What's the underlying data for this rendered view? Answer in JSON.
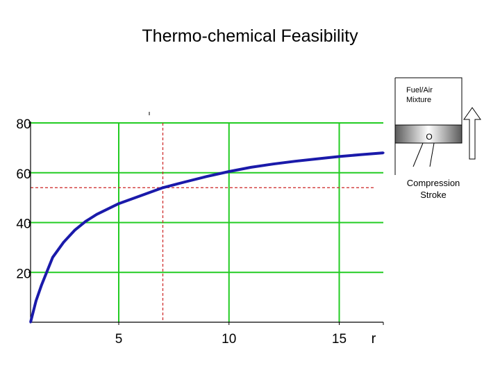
{
  "title": "Thermo-chemical Feasibility",
  "chart_data": {
    "type": "line",
    "title": "Thermo-chemical Feasibility",
    "xlabel": "r",
    "ylabel": "",
    "xlim": [
      1,
      17
    ],
    "ylim": [
      0,
      80
    ],
    "x_ticks": [
      5,
      10,
      15
    ],
    "y_ticks": [
      20,
      40,
      60,
      80
    ],
    "grid": true,
    "grid_color": "#22cc22",
    "series": [
      {
        "color": "#1a1aaa",
        "x": [
          1,
          1.25,
          1.5,
          2,
          2.5,
          3,
          3.5,
          4,
          5,
          6,
          7,
          8,
          9,
          10,
          11,
          12,
          13,
          14,
          15,
          16,
          17
        ],
        "values": [
          0,
          8.6,
          15.0,
          26.0,
          32.1,
          36.9,
          40.5,
          43.3,
          47.6,
          50.8,
          54.0,
          56.3,
          58.5,
          60.5,
          62.2,
          63.5,
          64.6,
          65.6,
          66.5,
          67.3,
          68.0
        ]
      }
    ],
    "reference_point": {
      "x": 7,
      "y": 54
    },
    "reference_color": "#cc2222"
  },
  "diagram": {
    "fuel_label_line1": "Fuel/Air",
    "fuel_label_line2": "Mixture",
    "piston_mark": "O",
    "stroke_label_line1": "Compression",
    "stroke_label_line2": "Stroke"
  }
}
